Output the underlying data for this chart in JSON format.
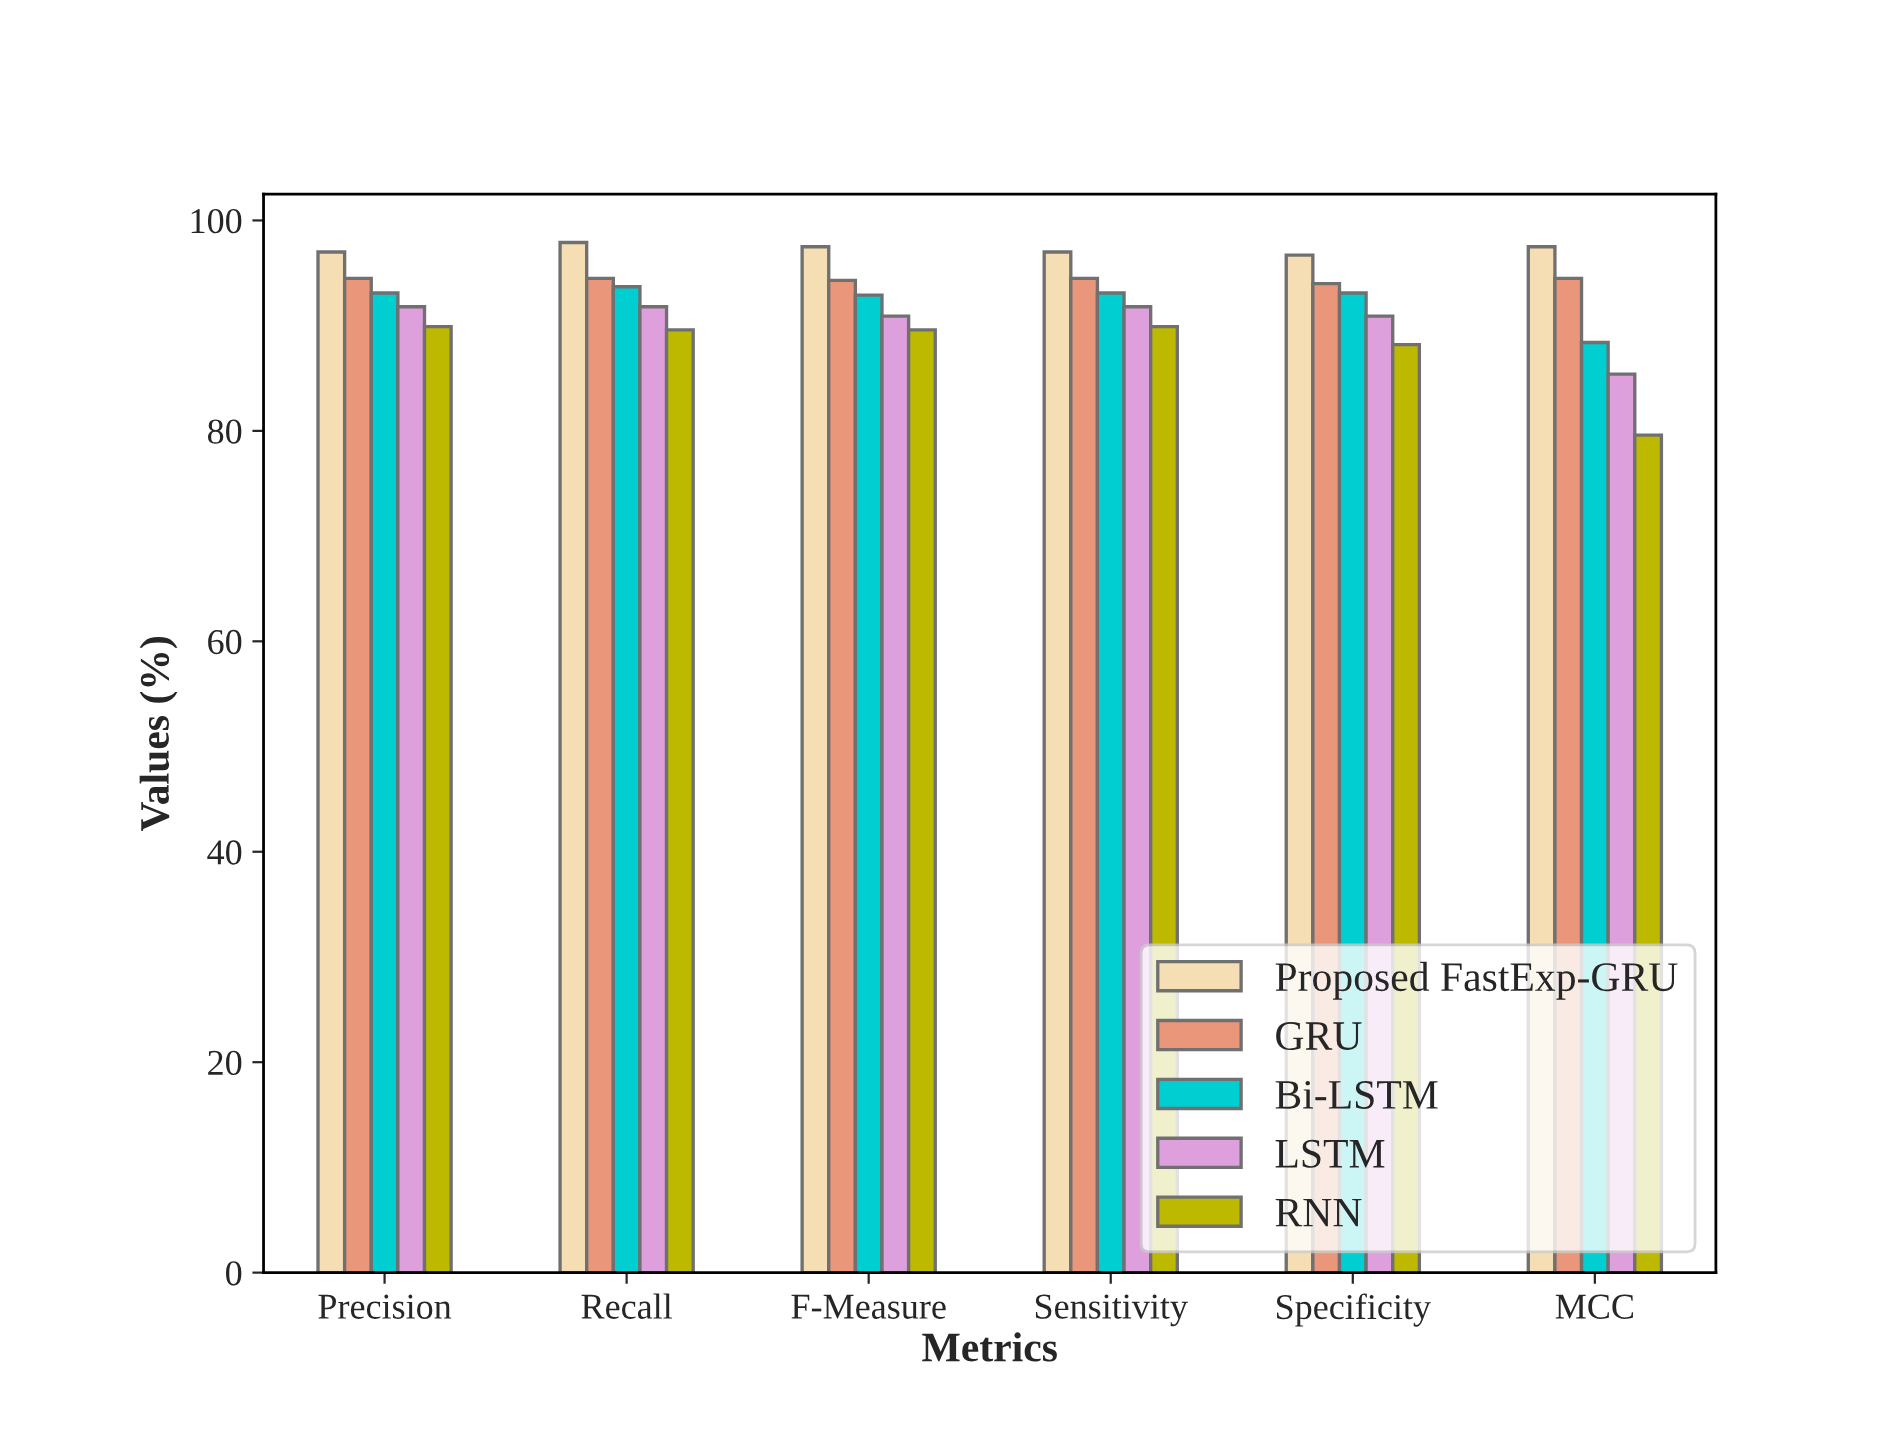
{
  "chart_data": {
    "type": "bar",
    "xlabel": "Metrics",
    "ylabel": "Values (%)",
    "categories": [
      "Precision",
      "Recall",
      "F-Measure",
      "Sensitivity",
      "Specificity",
      "MCC"
    ],
    "series": [
      {
        "name": "Proposed FastExp-GRU",
        "color": "#f5deb3",
        "values": [
          97.0,
          97.9,
          97.5,
          97.0,
          96.7,
          97.5
        ]
      },
      {
        "name": "GRU",
        "color": "#e9967a",
        "values": [
          94.5,
          94.5,
          94.3,
          94.5,
          94.0,
          94.5
        ]
      },
      {
        "name": "Bi-LSTM",
        "color": "#00ced1",
        "values": [
          93.1,
          93.7,
          92.9,
          93.1,
          93.1,
          88.4
        ]
      },
      {
        "name": "LSTM",
        "color": "#dda0dd",
        "values": [
          91.8,
          91.8,
          90.9,
          91.8,
          90.9,
          85.4
        ]
      },
      {
        "name": "RNN",
        "color": "#bdb800",
        "values": [
          89.9,
          89.6,
          89.6,
          89.9,
          88.2,
          79.6
        ]
      }
    ],
    "ylim": [
      0,
      102.5
    ],
    "yticks": [
      0,
      20,
      40,
      60,
      80,
      100
    ],
    "legend": "lower right",
    "grid": false
  }
}
